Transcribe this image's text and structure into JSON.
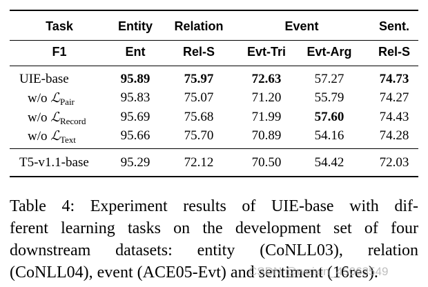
{
  "header1": [
    "Task",
    "Entity",
    "Relation",
    "Event",
    "Sent."
  ],
  "header2": [
    "F1",
    "Ent",
    "Rel-S",
    "Evt-Tri",
    "Evt-Arg",
    "Rel-S"
  ],
  "rows": [
    {
      "label": "UIE-base",
      "values": [
        "95.89",
        "75.97",
        "72.63",
        "57.27",
        "74.73"
      ]
    },
    {
      "label_prefix": "w/o ",
      "label_symbol": "ℒ",
      "label_sub": "Pair",
      "values": [
        "95.83",
        "75.07",
        "71.20",
        "55.79",
        "74.27"
      ]
    },
    {
      "label_prefix": "w/o ",
      "label_symbol": "ℒ",
      "label_sub": "Record",
      "values": [
        "95.69",
        "75.68",
        "71.99",
        "57.60",
        "74.43"
      ]
    },
    {
      "label_prefix": "w/o ",
      "label_symbol": "ℒ",
      "label_sub": "Text",
      "values": [
        "95.66",
        "75.70",
        "70.89",
        "54.16",
        "74.28"
      ]
    },
    {
      "label": "T5-v1.1-base",
      "values": [
        "95.29",
        "72.12",
        "70.50",
        "54.42",
        "72.03"
      ]
    }
  ],
  "caption_lines": [
    "Table 4:  Experiment results of UIE-base with dif-",
    "ferent learning tasks on the development set of four",
    "downstream datasets:  entity (CoNLL03), relation",
    "(CoNLL04), event (ACE05-Evt) and sentiment (16res)."
  ],
  "watermark": "CSDN @weixin_45063549"
}
